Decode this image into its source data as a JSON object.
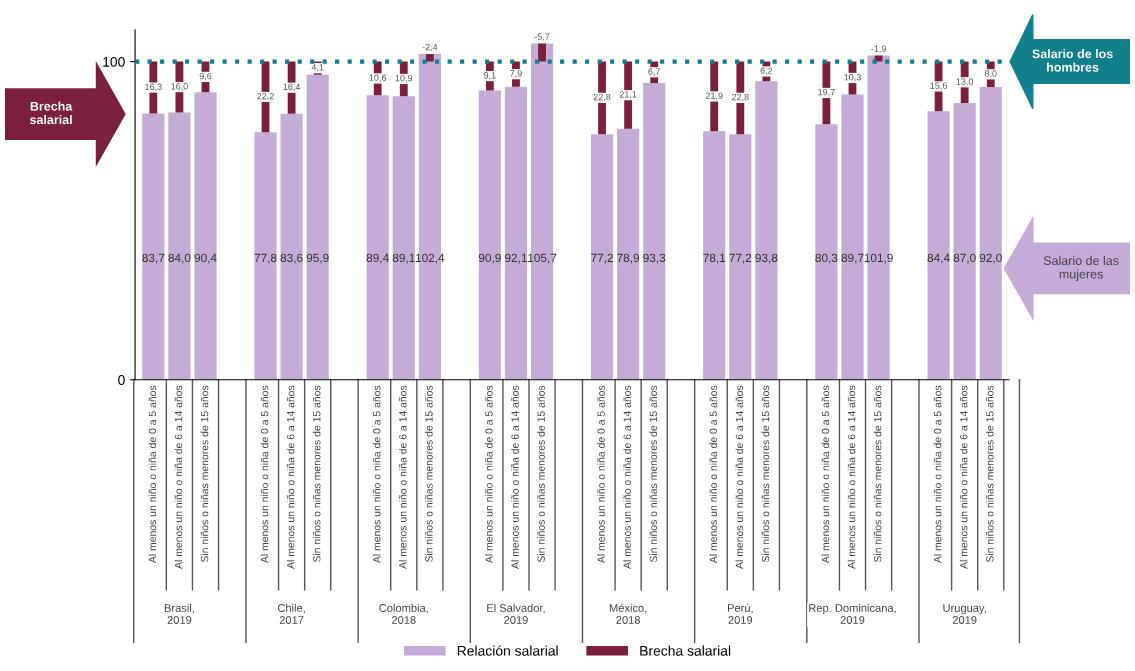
{
  "chart_data": {
    "type": "bar",
    "categories": [
      "Al menos un niño o niña de 0 a 5 años",
      "Al menos un niño o niña de 6 a 14 años",
      "Sin niños o niñas menores de 15 años",
      "Al menos un niño o niña de 0 a 5 años",
      "Al menos un niño o niña de 6 a 14 años",
      "Sin niños o niñas menores de 15 años",
      "Al menos un niño o niña de 0 a 5 años",
      "Al menos un niño o niña de 6 a 14 años",
      "Sin niños o niñas menores de 15 años",
      "Al menos un niño o niña de 0 a 5 años",
      "Al menos un niño o niña de 6 a 14 años",
      "Sin niños o niñas menores de 15 años",
      "Al menos un niño o niña de 0 a 5 años",
      "Al menos un niño o niña de 6 a 14 años",
      "Sin niños o niñas menores de 15 años",
      "Al menos un niño o niña de 0 a 5 años",
      "Al menos un niño o niña de 6 a 14 años",
      "Sin niños o niñas menores de 15 años",
      "Al menos un niño o niña de 0 a 5 años",
      "Al menos un niño o niña de 6 a 14 años",
      "Sin niños o niñas menores de 15 años",
      "Al menos un niño o niña de 0 a 5 años",
      "Al menos un niño o niña de 6 a 14 años",
      "Sin niños o niñas menores de 15 años"
    ],
    "series": [
      {
        "name": "Relación salarial",
        "color": "#c4acd6",
        "values": [
          83.7,
          84.0,
          90.4,
          77.8,
          83.6,
          95.9,
          89.4,
          89.1,
          102.4,
          90.9,
          92.1,
          105.7,
          77.2,
          78.9,
          93.3,
          78.1,
          77.2,
          93.8,
          80.3,
          89.7,
          101.9,
          84.4,
          87.0,
          92.0
        ],
        "value_labels": [
          "83,7",
          "84,0",
          "90,4",
          "77,8",
          "83,6",
          "95,9",
          "89,4",
          "89,1",
          "102,4",
          "90,9",
          "92,1",
          "105,7",
          "77,2",
          "78,9",
          "93,3",
          "78,1",
          "77,2",
          "93,8",
          "80,3",
          "89,7",
          "101,9",
          "84,4",
          "87,0",
          "92,0"
        ]
      },
      {
        "name": "Brecha salarial",
        "color": "#7a1f3d",
        "base": [
          83.7,
          84.0,
          90.4,
          77.8,
          83.6,
          95.9,
          89.4,
          89.1,
          102.4,
          90.9,
          92.1,
          105.7,
          77.2,
          78.9,
          93.3,
          78.1,
          77.2,
          93.8,
          80.3,
          89.7,
          101.9,
          84.4,
          87.0,
          92.0
        ],
        "values": [
          16.3,
          16.0,
          9.6,
          22.2,
          16.4,
          4.1,
          10.6,
          10.9,
          -2.4,
          9.1,
          7.9,
          -5.7,
          22.8,
          21.1,
          6.7,
          21.9,
          22.8,
          6.2,
          19.7,
          10.3,
          -1.9,
          15.6,
          13.0,
          8.0
        ],
        "value_labels": [
          "16,3",
          "16,0",
          "9,6",
          "22,2",
          "16,4",
          "4,1",
          "10,6",
          "10,9",
          "-2,4",
          "9,1",
          "7,9",
          "-5,7",
          "22,8",
          "21,1",
          "6,7",
          "21,9",
          "22,8",
          "6,2",
          "19,7",
          "10,3",
          "-1,9",
          "15,6",
          "13,0",
          "8,0"
        ]
      }
    ],
    "annotations": [
      "Brasil,\n2019",
      "Chile,\n2017",
      "Colombia,\n2018",
      "El Salvador,\n2019",
      "México,\n2018",
      "Perú,\n2019",
      "Rep. Dominicana,\n2019",
      "Uruguay,\n2019",
      "Brecha\nsalarial",
      "Salario de las\nmujeres"
    ],
    "ref_lines": [
      {
        "axis": "y",
        "value": 100,
        "label": "Salario de los\nhombres",
        "color": "#117f8c",
        "line_style": "dotted"
      }
    ],
    "ylim": [
      0,
      110
    ],
    "yticks": [
      0,
      100
    ],
    "grid": false,
    "legend": "bottom"
  }
}
